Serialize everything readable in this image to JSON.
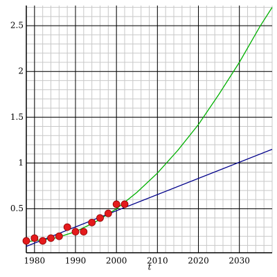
{
  "chart_data": {
    "type": "scatter",
    "xlabel": "t",
    "xlim": [
      1978,
      2038
    ],
    "ylim": [
      0.02,
      2.72
    ],
    "xticks": [
      1980,
      1990,
      2000,
      2010,
      2020,
      2030
    ],
    "yticks": [
      0.5,
      1,
      1.5,
      2,
      2.5
    ],
    "grid": true,
    "minor_grid": true,
    "series": [
      {
        "type": "line",
        "color": "#00b000",
        "x": [
          1978,
          1985,
          1990,
          1995,
          2000,
          2005,
          2010,
          2015,
          2020,
          2025,
          2030,
          2035,
          2038
        ],
        "values": [
          0.14,
          0.18,
          0.25,
          0.36,
          0.5,
          0.68,
          0.89,
          1.14,
          1.42,
          1.75,
          2.1,
          2.49,
          2.7
        ]
      },
      {
        "type": "line",
        "color": "#00008b",
        "x": [
          1978,
          2038
        ],
        "values": [
          0.09,
          1.15
        ]
      },
      {
        "type": "scatter",
        "color": "#e41a1c",
        "x": [
          1978,
          1980,
          1982,
          1984,
          1986,
          1988,
          1990,
          1992,
          1994,
          1996,
          1998,
          2000,
          2002
        ],
        "values": [
          0.15,
          0.18,
          0.15,
          0.18,
          0.2,
          0.3,
          0.25,
          0.25,
          0.35,
          0.4,
          0.45,
          0.55,
          0.55
        ]
      }
    ]
  }
}
